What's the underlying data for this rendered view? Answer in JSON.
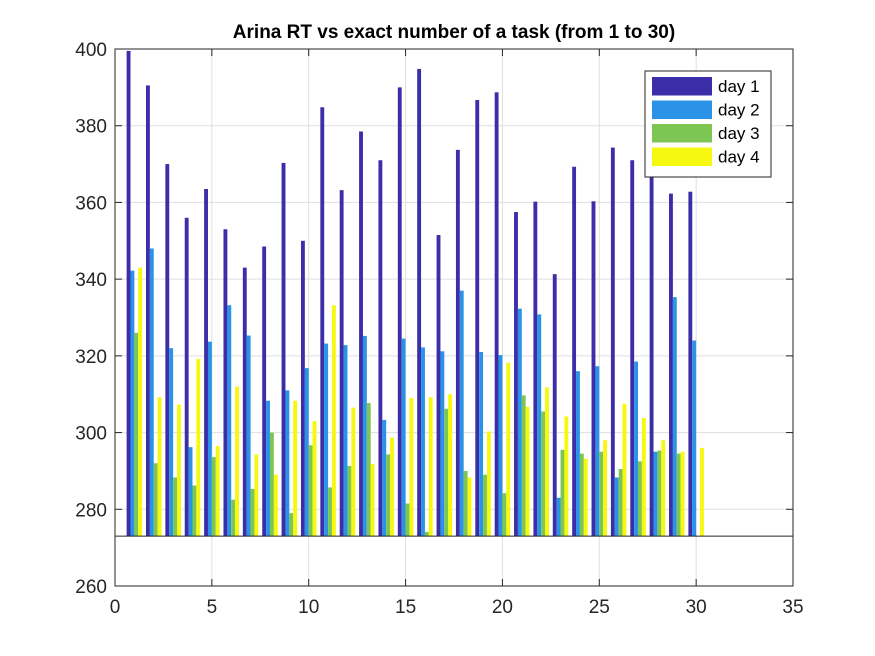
{
  "chart_data": {
    "type": "bar",
    "title": "Arina RT vs exact number of a task (from 1 to 30)",
    "xlabel": "",
    "ylabel": "",
    "xlim": [
      0,
      35
    ],
    "ylim": [
      260,
      400
    ],
    "baseline": 273,
    "xticks": [
      0,
      5,
      10,
      15,
      20,
      25,
      30,
      35
    ],
    "yticks": [
      260,
      280,
      300,
      320,
      340,
      360,
      380,
      400
    ],
    "grid": true,
    "legend_position": "top-right",
    "categories": [
      1,
      2,
      3,
      4,
      5,
      6,
      7,
      8,
      9,
      10,
      11,
      12,
      13,
      14,
      15,
      16,
      17,
      18,
      19,
      20,
      21,
      22,
      23,
      24,
      25,
      26,
      27,
      28,
      29,
      30
    ],
    "series": [
      {
        "name": "day 1",
        "color": "#3b2ea8",
        "values": [
          399.5,
          390.5,
          370,
          356,
          363.5,
          353,
          343,
          348.5,
          370.3,
          350,
          384.8,
          363.2,
          378.5,
          371,
          390,
          394.8,
          351.5,
          373.7,
          386.7,
          388.7,
          357.5,
          360.2,
          341.3,
          369.3,
          360.3,
          374.3,
          371,
          367.3,
          362.3,
          362.8
        ]
      },
      {
        "name": "day 2",
        "color": "#2b93e7",
        "values": [
          342.2,
          348,
          322,
          296.2,
          323.7,
          333.2,
          325.3,
          308.3,
          311,
          316.8,
          323.2,
          322.8,
          325.2,
          303.3,
          324.5,
          322.2,
          321.2,
          337,
          321,
          320.2,
          332.3,
          330.8,
          283,
          316,
          317.3,
          288.3,
          318.5,
          295,
          335.3,
          324
        ]
      },
      {
        "name": "day 3",
        "color": "#7ec654",
        "values": [
          326,
          292,
          288.3,
          286.2,
          293.6,
          282.5,
          285.3,
          300,
          279,
          296.7,
          285.7,
          291.3,
          307.7,
          294.3,
          281.5,
          274.1,
          306.2,
          290,
          289,
          284.2,
          309.7,
          305.5,
          295.5,
          294.5,
          295,
          290.5,
          292.5,
          295.3,
          294.5,
          273
        ]
      },
      {
        "name": "day 4",
        "color": "#f6f90f",
        "values": [
          343,
          309.2,
          307.3,
          319.2,
          296.5,
          312,
          294.3,
          289,
          308.3,
          303,
          333.2,
          306.5,
          291.8,
          298.7,
          309,
          309.2,
          310,
          288.3,
          300.3,
          318.2,
          306.7,
          311.8,
          304.2,
          293.2,
          298,
          307.5,
          303.8,
          298,
          295,
          296
        ]
      }
    ]
  }
}
